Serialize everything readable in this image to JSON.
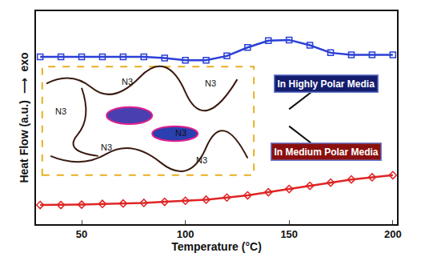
{
  "chart_data": {
    "type": "line",
    "x_label": "Temperature (°C)",
    "y_label": "Heat Flow (a.u.)  ⟶  exo",
    "xlim": [
      28,
      202
    ],
    "xticks": [
      50,
      100,
      150,
      200
    ],
    "ylim": [
      0,
      10
    ],
    "yticks": [],
    "tick_labels": "x",
    "grid": false,
    "x": [
      30,
      40,
      50,
      60,
      70,
      80,
      90,
      100,
      110,
      120,
      130,
      140,
      150,
      160,
      170,
      180,
      190,
      200
    ],
    "series": [
      {
        "color": "#2a3fd6",
        "marker": "square-open",
        "line_style": "solid",
        "values": [
          7.86,
          7.86,
          7.86,
          7.86,
          7.86,
          7.86,
          7.8,
          7.7,
          7.7,
          7.9,
          8.3,
          8.62,
          8.65,
          8.4,
          8.05,
          7.95,
          7.95,
          7.95
        ]
      },
      {
        "color": "#e02424",
        "marker": "diamond-open",
        "line_style": "solid",
        "values": [
          0.9,
          0.9,
          0.92,
          0.95,
          0.97,
          1.0,
          1.05,
          1.1,
          1.15,
          1.25,
          1.35,
          1.5,
          1.65,
          1.8,
          1.95,
          2.1,
          2.2,
          2.3
        ]
      }
    ],
    "annotations": [
      "In Highly Polar Media",
      "In Medium Polar Media",
      "N3",
      "N3",
      "N3",
      "N3",
      "N3",
      "N3"
    ]
  }
}
